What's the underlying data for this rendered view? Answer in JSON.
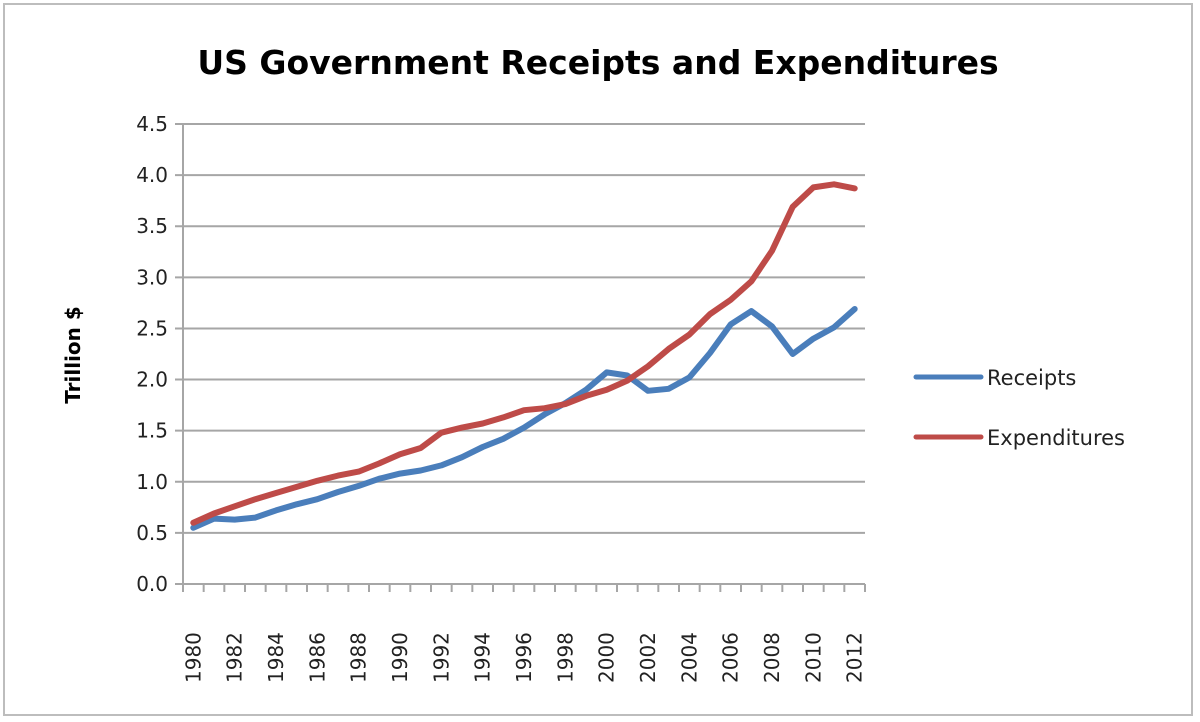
{
  "chart_data": {
    "type": "line",
    "title": "US Government Receipts and Expenditures",
    "xlabel": "",
    "ylabel": "Trillion $",
    "ylim": [
      0,
      4.5
    ],
    "yticks": [
      "0.0",
      "0.5",
      "1.0",
      "1.5",
      "2.0",
      "2.5",
      "3.0",
      "3.5",
      "4.0",
      "4.5"
    ],
    "ytick_values": [
      0,
      0.5,
      1.0,
      1.5,
      2.0,
      2.5,
      3.0,
      3.5,
      4.0,
      4.5
    ],
    "grid": true,
    "legend_position": "right",
    "x": [
      "1980",
      "1981",
      "1982",
      "1983",
      "1984",
      "1985",
      "1986",
      "1987",
      "1988",
      "1989",
      "1990",
      "1991",
      "1992",
      "1993",
      "1994",
      "1995",
      "1996",
      "1997",
      "1998",
      "1999",
      "2000",
      "2001",
      "2002",
      "2003",
      "2004",
      "2005",
      "2006",
      "2007",
      "2008",
      "2009",
      "2010",
      "2011",
      "2012"
    ],
    "xtick_labels": [
      "1980",
      "1982",
      "1984",
      "1986",
      "1988",
      "1990",
      "1992",
      "1994",
      "1996",
      "1998",
      "2000",
      "2002",
      "2004",
      "2006",
      "2008",
      "2010",
      "2012"
    ],
    "series": [
      {
        "name": "Receipts",
        "color": "#4a7ebb",
        "values": [
          0.55,
          0.64,
          0.63,
          0.65,
          0.72,
          0.78,
          0.83,
          0.9,
          0.96,
          1.03,
          1.08,
          1.11,
          1.16,
          1.24,
          1.34,
          1.42,
          1.53,
          1.66,
          1.77,
          1.9,
          2.07,
          2.04,
          1.89,
          1.91,
          2.02,
          2.26,
          2.54,
          2.67,
          2.52,
          2.25,
          2.4,
          2.51,
          2.69
        ]
      },
      {
        "name": "Expenditures",
        "color": "#be4b48",
        "values": [
          0.6,
          0.69,
          0.76,
          0.83,
          0.89,
          0.95,
          1.01,
          1.06,
          1.1,
          1.18,
          1.27,
          1.33,
          1.48,
          1.53,
          1.57,
          1.63,
          1.7,
          1.72,
          1.76,
          1.84,
          1.9,
          1.99,
          2.13,
          2.3,
          2.44,
          2.64,
          2.78,
          2.96,
          3.26,
          3.69,
          3.88,
          3.91,
          3.87
        ]
      }
    ]
  }
}
